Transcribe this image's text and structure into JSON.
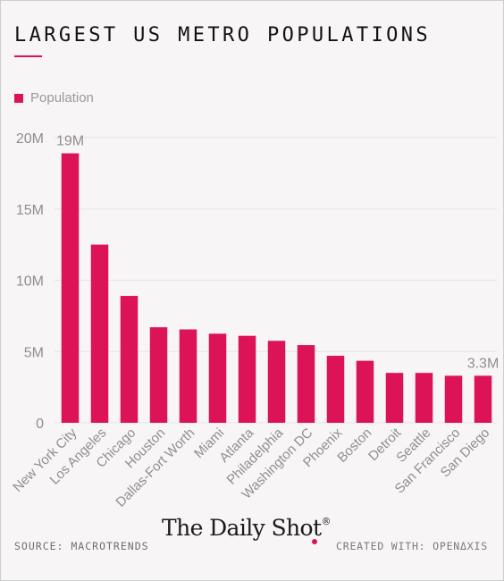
{
  "title": "LARGEST US METRO POPULATIONS",
  "colors": {
    "accent": "#dc1357",
    "grid": "#e6e3e3",
    "axis_text": "#8f8f8f"
  },
  "footer": {
    "source": "SOURCE: MACROTRENDS",
    "brand": "The Daily Shot",
    "brand_mark": "®",
    "created_with": "CREATED WITH: OPENΔXIS"
  },
  "chart_data": {
    "type": "bar",
    "series": [
      {
        "name": "Population",
        "values": [
          18.9,
          12.5,
          8.9,
          6.7,
          6.55,
          6.25,
          6.1,
          5.75,
          5.45,
          4.7,
          4.35,
          3.5,
          3.5,
          3.3,
          3.3
        ]
      }
    ],
    "categories": [
      "New York City",
      "Los Angeles",
      "Chicago",
      "Houston",
      "Dallas-Fort Worth",
      "Miami",
      "Atlanta",
      "Philadelphia",
      "Washington DC",
      "Phoenix",
      "Boston",
      "Detroit",
      "Seattle",
      "San Francisco",
      "San Diego"
    ],
    "data_labels": [
      {
        "index": 0,
        "text": "19M"
      },
      {
        "index": 14,
        "text": "3.3M"
      }
    ],
    "y_ticks": [
      {
        "value": 0,
        "label": "0"
      },
      {
        "value": 5,
        "label": "5M"
      },
      {
        "value": 10,
        "label": "10M"
      },
      {
        "value": 15,
        "label": "15M"
      },
      {
        "value": 20,
        "label": "20M"
      }
    ],
    "ylim": [
      0,
      20
    ],
    "grid": true,
    "legend": "top-left"
  }
}
